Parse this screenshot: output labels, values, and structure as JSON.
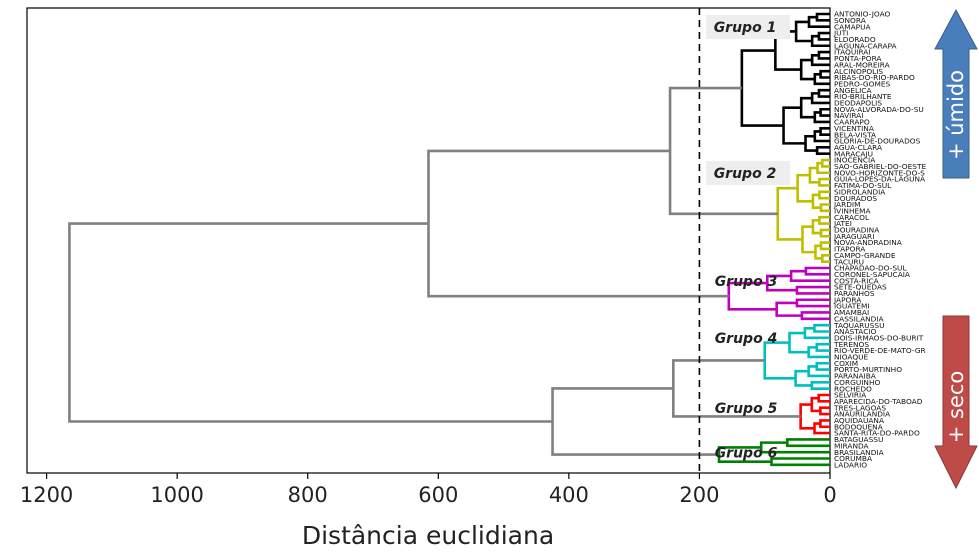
{
  "chart_data": {
    "type": "dendrogram",
    "xlabel": "Distância euclidiana",
    "xlim": [
      1230,
      0
    ],
    "x_ticks": [
      1200,
      1000,
      800,
      600,
      400,
      200,
      0
    ],
    "cut_line": 200,
    "leaves": [
      "ANTONIO-JOAO",
      "SONORA",
      "CAMAPUA",
      "JUTI",
      "ELDORADO",
      "LAGUNA-CARAPA",
      "ITAQUIRAI",
      "PONTA-PORA",
      "ARAL-MOREIRA",
      "ALCINOPOLIS",
      "RIBAS-DO-RIO-PARDO",
      "PEDRO-GOMES",
      "ANGELICA",
      "RIO-BRILHANTE",
      "DEODAPOLIS",
      "NOVA-ALVORADA-DO-SU",
      "NAVIRAI",
      "CAARAPO",
      "VICENTINA",
      "BELA-VISTA",
      "GLORIA-DE-DOURADOS",
      "AGUA-CLARA",
      "MARACAJU",
      "INOCENCIA",
      "SAO-GABRIEL-DO-OESTE",
      "NOVO-HORIZONTE-DO-S",
      "GUIA-LOPES-DA-LAGUNA",
      "FATIMA-DO-SUL",
      "SIDROLANDIA",
      "DOURADOS",
      "JARDIM",
      "IVINHEMA",
      "CARACOL",
      "JATEI",
      "DOURADINA",
      "JARAGUARI",
      "NOVA-ANDRADINA",
      "ITAPORA",
      "CAMPO-GRANDE",
      "TACURU",
      "CHAPADAO-DO-SUL",
      "CORONEL-SAPUCAIA",
      "COSTA-RICA",
      "SETE-QUEDAS",
      "PARANHOS",
      "JAPORA",
      "IGUATEMI",
      "AMAMBAI",
      "CASSILANDIA",
      "TAQUARUSSU",
      "ANASTACIO",
      "DOIS-IRMAOS-DO-BURIT",
      "TERENOS",
      "RIO-VERDE-DE-MATO-GR",
      "NIOAQUE",
      "COXIM",
      "PORTO-MURTINHO",
      "PARANAIBA",
      "CORGUINHO",
      "ROCHEDO",
      "SELVIRIA",
      "APARECIDA-DO-TABOAD",
      "TRES-LAGOAS",
      "ANAURILANDIA",
      "AQUIDAUANA",
      "BODOQUENA",
      "SANTA-RITA-DO-PARDO",
      "BATAGUASSU",
      "MIRANDA",
      "BRASILANDIA",
      "CORUMBA",
      "LADARIO"
    ],
    "groups": [
      {
        "name": "Grupo 1",
        "color": "#000000",
        "first": 0,
        "last": 22,
        "height": 135
      },
      {
        "name": "Grupo 2",
        "color": "#bfbf00",
        "first": 23,
        "last": 39,
        "height": 80
      },
      {
        "name": "Grupo 3",
        "color": "#bf00bf",
        "first": 40,
        "last": 48,
        "height": 155
      },
      {
        "name": "Grupo 4",
        "color": "#00bfbf",
        "first": 49,
        "last": 59,
        "height": 100
      },
      {
        "name": "Grupo 5",
        "color": "#ff0000",
        "first": 60,
        "last": 66,
        "height": 45
      },
      {
        "name": "Grupo 6",
        "color": "#008000",
        "first": 67,
        "last": 71,
        "height": 170
      }
    ],
    "link_color": "#808080",
    "upper_links": [
      {
        "left": "Grupo 1",
        "right": "Grupo 2",
        "height": 245,
        "id": "A"
      },
      {
        "left": "A",
        "right": "Grupo 3",
        "height": 615,
        "id": "B"
      },
      {
        "left": "Grupo 4",
        "right": "Grupo 5",
        "height": 240,
        "id": "C"
      },
      {
        "left": "C",
        "right": "Grupo 6",
        "height": 425,
        "id": "D"
      },
      {
        "left": "B",
        "right": "D",
        "height": 1165,
        "id": "R"
      }
    ]
  },
  "arrows": {
    "wet": {
      "label": "+ úmido",
      "color": "#4a7ebb"
    },
    "dry": {
      "label": "+ seco",
      "color": "#be4b48"
    }
  }
}
